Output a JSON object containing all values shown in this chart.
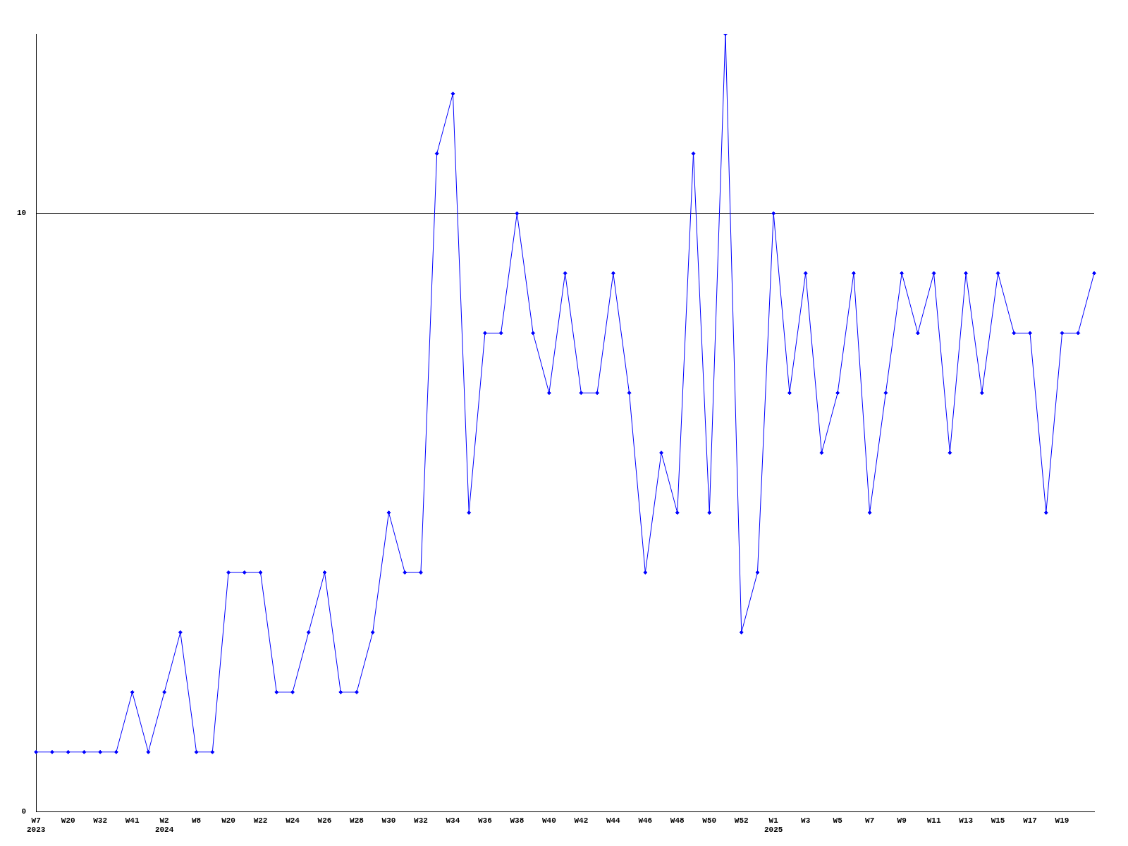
{
  "chart_data": {
    "type": "line",
    "categories": [
      "W7\n2023",
      null,
      "W20",
      null,
      "W32",
      null,
      "W41",
      null,
      "W2\n2024",
      null,
      "W8",
      null,
      "W20",
      null,
      "W22",
      null,
      "W24",
      null,
      "W26",
      null,
      "W28",
      null,
      "W30",
      null,
      "W32",
      null,
      "W34",
      null,
      "W36",
      null,
      "W38",
      null,
      "W40",
      null,
      "W42",
      null,
      "W44",
      null,
      "W46",
      null,
      "W48",
      null,
      "W50",
      null,
      "W52",
      null,
      "W1\n2025",
      null,
      "W3",
      null,
      "W5",
      null,
      "W7",
      null,
      "W9",
      null,
      "W11",
      null,
      "W13",
      null,
      "W15",
      null,
      "W17",
      null,
      "W19",
      null,
      null
    ],
    "series": [
      {
        "color": "#0000ff",
        "values": [
          1,
          1,
          1,
          1,
          1,
          1,
          2,
          1,
          2,
          3,
          1,
          1,
          4,
          4,
          4,
          2,
          2,
          3,
          4,
          2,
          2,
          3,
          5,
          4,
          4,
          11,
          12,
          5,
          8,
          8,
          10,
          8,
          7,
          9,
          7,
          7,
          9,
          7,
          4,
          6,
          5,
          11,
          5,
          13,
          3,
          4,
          10,
          7,
          9,
          6,
          7,
          9,
          5,
          7,
          9,
          8,
          9,
          6,
          9,
          7,
          9,
          8,
          8,
          5,
          8,
          8,
          9
        ]
      }
    ],
    "ylim": [
      0,
      13
    ],
    "yticks": [
      0,
      10
    ],
    "grid": "y",
    "legend": false,
    "marker": "diamond",
    "line_style": "solid"
  }
}
